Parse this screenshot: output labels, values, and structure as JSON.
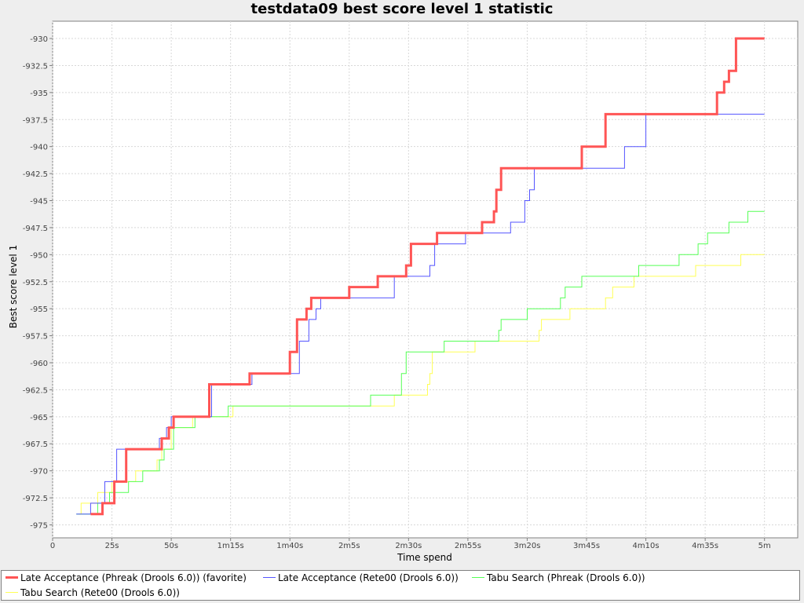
{
  "chart_data": {
    "type": "line",
    "step": true,
    "title": "testdata09 best score level 1 statistic",
    "xlabel": "Time spend",
    "ylabel": "Best score level 1",
    "xlim_seconds": [
      0,
      314
    ],
    "ylim": [
      -976.2,
      -928.4
    ],
    "grid": true,
    "legend_position": "bottom",
    "x_ticks": [
      {
        "value": 0,
        "label": "0"
      },
      {
        "value": 25,
        "label": "25s"
      },
      {
        "value": 50,
        "label": "50s"
      },
      {
        "value": 75,
        "label": "1m15s"
      },
      {
        "value": 100,
        "label": "1m40s"
      },
      {
        "value": 125,
        "label": "2m5s"
      },
      {
        "value": 150,
        "label": "2m30s"
      },
      {
        "value": 175,
        "label": "2m55s"
      },
      {
        "value": 200,
        "label": "3m20s"
      },
      {
        "value": 225,
        "label": "3m45s"
      },
      {
        "value": 250,
        "label": "4m10s"
      },
      {
        "value": 275,
        "label": "4m35s"
      },
      {
        "value": 300,
        "label": "5m"
      }
    ],
    "y_ticks": [
      {
        "value": -930,
        "label": "-930"
      },
      {
        "value": -932.5,
        "label": "-932.5"
      },
      {
        "value": -935,
        "label": "-935"
      },
      {
        "value": -937.5,
        "label": "-937.5"
      },
      {
        "value": -940,
        "label": "-940"
      },
      {
        "value": -942.5,
        "label": "-942.5"
      },
      {
        "value": -945,
        "label": "-945"
      },
      {
        "value": -947.5,
        "label": "-947.5"
      },
      {
        "value": -950,
        "label": "-950"
      },
      {
        "value": -952.5,
        "label": "-952.5"
      },
      {
        "value": -955,
        "label": "-955"
      },
      {
        "value": -957.5,
        "label": "-957.5"
      },
      {
        "value": -960,
        "label": "-960"
      },
      {
        "value": -962.5,
        "label": "-962.5"
      },
      {
        "value": -965,
        "label": "-965"
      },
      {
        "value": -967.5,
        "label": "-967.5"
      },
      {
        "value": -970,
        "label": "-970"
      },
      {
        "value": -972.5,
        "label": "-972.5"
      },
      {
        "value": -975,
        "label": "-975"
      }
    ],
    "series": [
      {
        "name": "Late Acceptance (Phreak (Drools 6.0)) (favorite)",
        "color": "#ff5555",
        "width": 3,
        "points": [
          [
            16,
            -974
          ],
          [
            21,
            -974
          ],
          [
            21,
            -973
          ],
          [
            26,
            -973
          ],
          [
            26,
            -971
          ],
          [
            31,
            -971
          ],
          [
            31,
            -968
          ],
          [
            46,
            -968
          ],
          [
            46,
            -967
          ],
          [
            49,
            -967
          ],
          [
            49,
            -966
          ],
          [
            51,
            -966
          ],
          [
            51,
            -965
          ],
          [
            66,
            -965
          ],
          [
            66,
            -962
          ],
          [
            83,
            -962
          ],
          [
            83,
            -961
          ],
          [
            100,
            -961
          ],
          [
            100,
            -959
          ],
          [
            103,
            -959
          ],
          [
            103,
            -956
          ],
          [
            107,
            -956
          ],
          [
            107,
            -955
          ],
          [
            109,
            -955
          ],
          [
            109,
            -954
          ],
          [
            125,
            -954
          ],
          [
            125,
            -953
          ],
          [
            137,
            -953
          ],
          [
            137,
            -952
          ],
          [
            149,
            -952
          ],
          [
            149,
            -951
          ],
          [
            151,
            -951
          ],
          [
            151,
            -949
          ],
          [
            162,
            -949
          ],
          [
            162,
            -948
          ],
          [
            181,
            -948
          ],
          [
            181,
            -947
          ],
          [
            186,
            -947
          ],
          [
            186,
            -946
          ],
          [
            187,
            -946
          ],
          [
            187,
            -944
          ],
          [
            189,
            -944
          ],
          [
            189,
            -942
          ],
          [
            223,
            -942
          ],
          [
            223,
            -940
          ],
          [
            233,
            -940
          ],
          [
            233,
            -937
          ],
          [
            280,
            -937
          ],
          [
            280,
            -935
          ],
          [
            283,
            -935
          ],
          [
            283,
            -934
          ],
          [
            285,
            -934
          ],
          [
            285,
            -933
          ],
          [
            288,
            -933
          ],
          [
            288,
            -930
          ],
          [
            300,
            -930
          ]
        ]
      },
      {
        "name": "Late Acceptance (Rete00 (Drools 6.0))",
        "color": "#5555ff",
        "width": 1,
        "points": [
          [
            10,
            -974
          ],
          [
            16,
            -974
          ],
          [
            16,
            -973
          ],
          [
            22,
            -973
          ],
          [
            22,
            -971
          ],
          [
            27,
            -971
          ],
          [
            27,
            -968
          ],
          [
            45,
            -968
          ],
          [
            45,
            -967
          ],
          [
            48,
            -967
          ],
          [
            48,
            -966
          ],
          [
            50,
            -966
          ],
          [
            50,
            -965
          ],
          [
            67,
            -965
          ],
          [
            67,
            -962
          ],
          [
            84,
            -962
          ],
          [
            84,
            -961
          ],
          [
            104,
            -961
          ],
          [
            104,
            -958
          ],
          [
            108,
            -958
          ],
          [
            108,
            -956
          ],
          [
            111,
            -956
          ],
          [
            111,
            -955
          ],
          [
            113,
            -955
          ],
          [
            113,
            -954
          ],
          [
            144,
            -954
          ],
          [
            144,
            -952
          ],
          [
            159,
            -952
          ],
          [
            159,
            -951
          ],
          [
            161,
            -951
          ],
          [
            161,
            -949
          ],
          [
            174,
            -949
          ],
          [
            174,
            -948
          ],
          [
            193,
            -948
          ],
          [
            193,
            -947
          ],
          [
            199,
            -947
          ],
          [
            199,
            -945
          ],
          [
            201,
            -945
          ],
          [
            201,
            -944
          ],
          [
            203,
            -944
          ],
          [
            203,
            -942
          ],
          [
            241,
            -942
          ],
          [
            241,
            -940
          ],
          [
            250,
            -940
          ],
          [
            250,
            -937
          ],
          [
            300,
            -937
          ]
        ]
      },
      {
        "name": "Tabu Search (Phreak (Drools 6.0))",
        "color": "#55ff55",
        "width": 1,
        "points": [
          [
            10,
            -974
          ],
          [
            19,
            -974
          ],
          [
            19,
            -973
          ],
          [
            24,
            -973
          ],
          [
            24,
            -972
          ],
          [
            32,
            -972
          ],
          [
            32,
            -971
          ],
          [
            38,
            -971
          ],
          [
            38,
            -970
          ],
          [
            45,
            -970
          ],
          [
            45,
            -969
          ],
          [
            47,
            -969
          ],
          [
            47,
            -968
          ],
          [
            51,
            -968
          ],
          [
            51,
            -966
          ],
          [
            60,
            -966
          ],
          [
            60,
            -965
          ],
          [
            74,
            -965
          ],
          [
            74,
            -964
          ],
          [
            134,
            -964
          ],
          [
            134,
            -963
          ],
          [
            147,
            -963
          ],
          [
            147,
            -961
          ],
          [
            149,
            -961
          ],
          [
            149,
            -959
          ],
          [
            165,
            -959
          ],
          [
            165,
            -958
          ],
          [
            188,
            -958
          ],
          [
            188,
            -957
          ],
          [
            189,
            -957
          ],
          [
            189,
            -956
          ],
          [
            200,
            -956
          ],
          [
            200,
            -955
          ],
          [
            214,
            -955
          ],
          [
            214,
            -954
          ],
          [
            216,
            -954
          ],
          [
            216,
            -953
          ],
          [
            223,
            -953
          ],
          [
            223,
            -952
          ],
          [
            247,
            -952
          ],
          [
            247,
            -951
          ],
          [
            264,
            -951
          ],
          [
            264,
            -950
          ],
          [
            272,
            -950
          ],
          [
            272,
            -949
          ],
          [
            276,
            -949
          ],
          [
            276,
            -948
          ],
          [
            285,
            -948
          ],
          [
            285,
            -947
          ],
          [
            293,
            -947
          ],
          [
            293,
            -946
          ],
          [
            300,
            -946
          ]
        ]
      },
      {
        "name": "Tabu Search (Rete00 (Drools 6.0))",
        "color": "#ffff55",
        "width": 1,
        "points": [
          [
            11,
            -974
          ],
          [
            12,
            -974
          ],
          [
            12,
            -973
          ],
          [
            19,
            -973
          ],
          [
            19,
            -972
          ],
          [
            25,
            -972
          ],
          [
            25,
            -971
          ],
          [
            35,
            -971
          ],
          [
            35,
            -970
          ],
          [
            44,
            -970
          ],
          [
            44,
            -969
          ],
          [
            46,
            -969
          ],
          [
            46,
            -968
          ],
          [
            50,
            -968
          ],
          [
            50,
            -966
          ],
          [
            59,
            -966
          ],
          [
            59,
            -965
          ],
          [
            76,
            -965
          ],
          [
            76,
            -964
          ],
          [
            144,
            -964
          ],
          [
            144,
            -963
          ],
          [
            158,
            -963
          ],
          [
            158,
            -962
          ],
          [
            159,
            -962
          ],
          [
            159,
            -961
          ],
          [
            160,
            -961
          ],
          [
            160,
            -959
          ],
          [
            178,
            -959
          ],
          [
            178,
            -958
          ],
          [
            205,
            -958
          ],
          [
            205,
            -957
          ],
          [
            206,
            -957
          ],
          [
            206,
            -956
          ],
          [
            218,
            -956
          ],
          [
            218,
            -955
          ],
          [
            233,
            -955
          ],
          [
            233,
            -954
          ],
          [
            236,
            -954
          ],
          [
            236,
            -953
          ],
          [
            245,
            -953
          ],
          [
            245,
            -952
          ],
          [
            271,
            -952
          ],
          [
            271,
            -951
          ],
          [
            290,
            -951
          ],
          [
            290,
            -950
          ],
          [
            300,
            -950
          ]
        ]
      }
    ]
  }
}
